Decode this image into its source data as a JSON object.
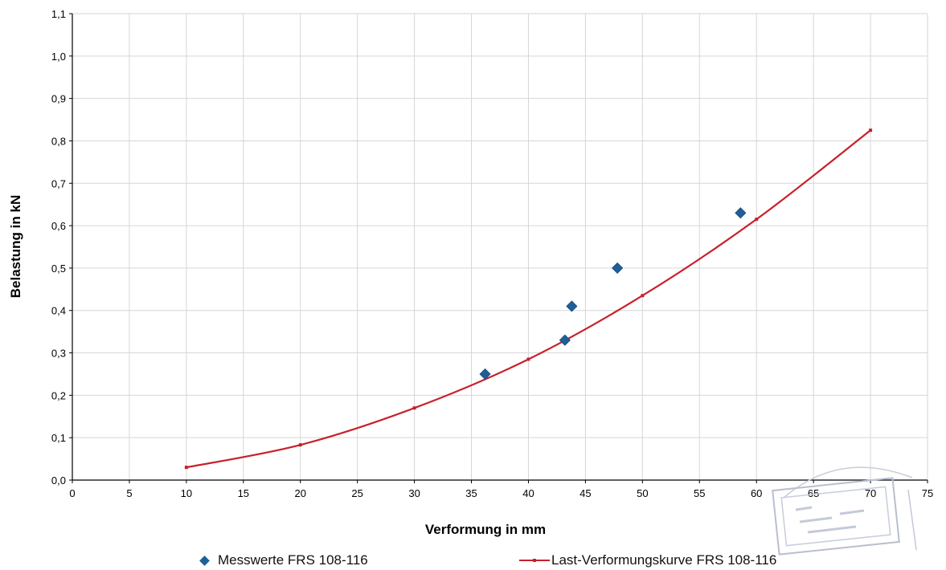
{
  "chart_data": {
    "type": "scatter",
    "xlabel": "Verformung in mm",
    "ylabel": "Belastung in kN",
    "xlim": [
      0,
      75
    ],
    "ylim": [
      0,
      1.1
    ],
    "x_ticks": [
      "0",
      "5",
      "10",
      "15",
      "20",
      "25",
      "30",
      "35",
      "40",
      "45",
      "50",
      "55",
      "60",
      "65",
      "70",
      "75"
    ],
    "y_ticks": [
      "0,0",
      "0,1",
      "0,2",
      "0,3",
      "0,4",
      "0,5",
      "0,6",
      "0,7",
      "0,8",
      "0,9",
      "1,0",
      "1,1"
    ],
    "grid": true,
    "legend_position": "bottom",
    "series": [
      {
        "name": "Messwerte FRS 108-116",
        "kind": "scatter",
        "marker": "diamond",
        "color": "#1f5f99",
        "x": [
          36.2,
          43.2,
          43.8,
          47.8,
          58.6
        ],
        "y": [
          0.25,
          0.33,
          0.41,
          0.5,
          0.63
        ]
      },
      {
        "name": "Last-Verformungskurve FRS 108-116",
        "kind": "line",
        "color": "#c8202a",
        "x": [
          10,
          20,
          30,
          40,
          50,
          60,
          70
        ],
        "y": [
          0.03,
          0.083,
          0.17,
          0.285,
          0.435,
          0.615,
          0.825
        ]
      }
    ]
  }
}
